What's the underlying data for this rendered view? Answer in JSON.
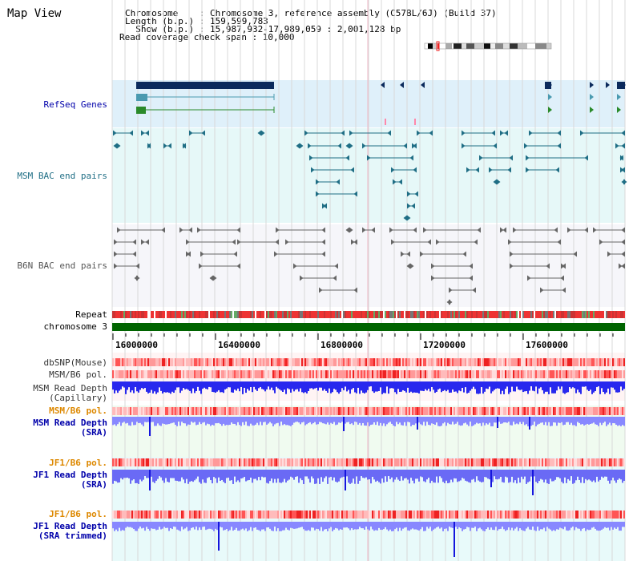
{
  "header": {
    "title": "Map View",
    "chromosome_line": "Chromosome    : Chromosome 3, reference assembly (C57BL/6J) (Build 37)",
    "length_line": "Length (b.p.) : 159,599,783",
    "show_line": "  Show (b.p.) : 15,987,932-17,989,059 : 2,001,128 bp",
    "coverage_line": "Read coverage check span : 10,000"
  },
  "tracks": {
    "refseq": "RefSeq Genes",
    "msm_bac": "MSM BAC end pairs",
    "b6n_bac": "B6N BAC end pairs",
    "repeat": "Repeat",
    "chromosome": "chromosome 3",
    "dbsnp": "dbSNP(Mouse)",
    "msm_b6_pol": "MSM/B6 pol.",
    "msm_read_depth_cap": [
      "MSM Read Depth",
      "(Capillary)"
    ],
    "msm_b6_pol_2": "MSM/B6 pol.",
    "msm_read_depth_sra": [
      "MSM Read Depth",
      "(SRA)"
    ],
    "jf1_b6_pol": "JF1/B6 pol.",
    "jf1_read_depth_sra": [
      "JF1 Read Depth",
      "(SRA)"
    ],
    "jf1_b6_pol_2": "JF1/B6 pol.",
    "jf1_read_depth_trim": [
      "JF1 Read Depth",
      "(SRA trimmed)"
    ]
  },
  "ruler": {
    "ticks": [
      "16000000",
      "16400000",
      "16800000",
      "17200000",
      "17600000"
    ]
  },
  "colors": {
    "gene_dark": "#0b2a5c",
    "gene_teal": "#4a9ab0",
    "gene_green": "#2a8a2a",
    "msm_bac": "#1f6e85",
    "b6n_bac": "#666666",
    "chromosome": "#006400",
    "label_blue": "#0000aa",
    "label_orange": "#dd8800",
    "label_teal": "#1f6e85",
    "depth_blue": "#2828ee",
    "depth_light": "#8888ff"
  }
}
